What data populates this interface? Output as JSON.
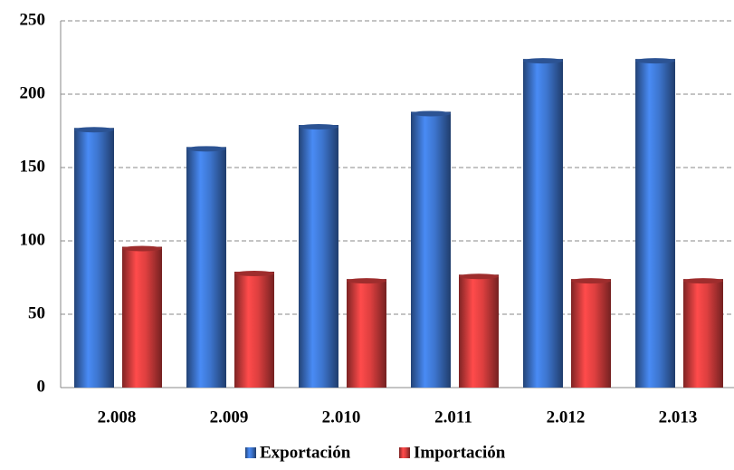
{
  "chart_data": {
    "type": "bar",
    "categories": [
      "2.008",
      "2.009",
      "2.010",
      "2.011",
      "2.012",
      "2.013"
    ],
    "series": [
      {
        "name": "Exportación",
        "color": "#3a6fc4",
        "values": [
          177,
          164,
          179,
          188,
          224,
          224
        ]
      },
      {
        "name": "Importación",
        "color": "#d23c3c",
        "values": [
          96,
          79,
          74,
          77,
          74,
          74
        ]
      }
    ],
    "ylim": [
      0,
      250
    ],
    "yticks": [
      0,
      50,
      100,
      150,
      200,
      250
    ],
    "grid": true,
    "legend": "bottom"
  }
}
